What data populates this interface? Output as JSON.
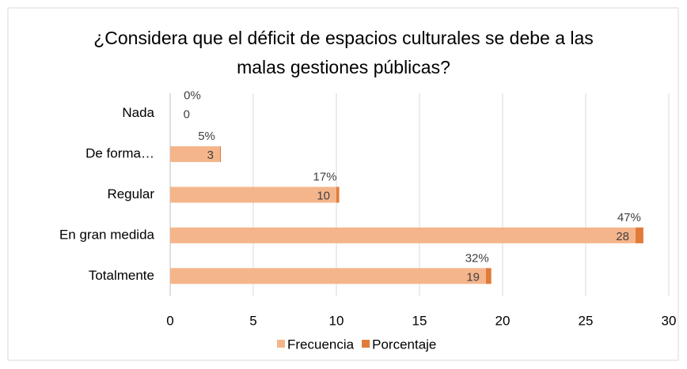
{
  "chart_data": {
    "type": "stacked-barh",
    "title": "¿Considera que el déficit de espacios culturales se debe a las malas gestiones públicas?",
    "categories": [
      "Nada",
      "De forma…",
      "Regular",
      "En gran medida",
      "Totalmente"
    ],
    "series": [
      {
        "name": "Frecuencia",
        "color": "#f5b58b",
        "values": [
          0,
          3,
          10,
          28,
          19
        ]
      },
      {
        "name": "Porcentaje",
        "color": "#e07b39",
        "values": [
          0,
          0.05,
          0.17,
          0.47,
          0.32
        ],
        "value_labels": [
          "0%",
          "5%",
          "17%",
          "47%",
          "32%"
        ]
      }
    ],
    "xlim": [
      0,
      30
    ],
    "xticks": [
      0,
      5,
      10,
      15,
      20,
      25,
      30
    ],
    "grid": true,
    "legend": "bottom"
  }
}
